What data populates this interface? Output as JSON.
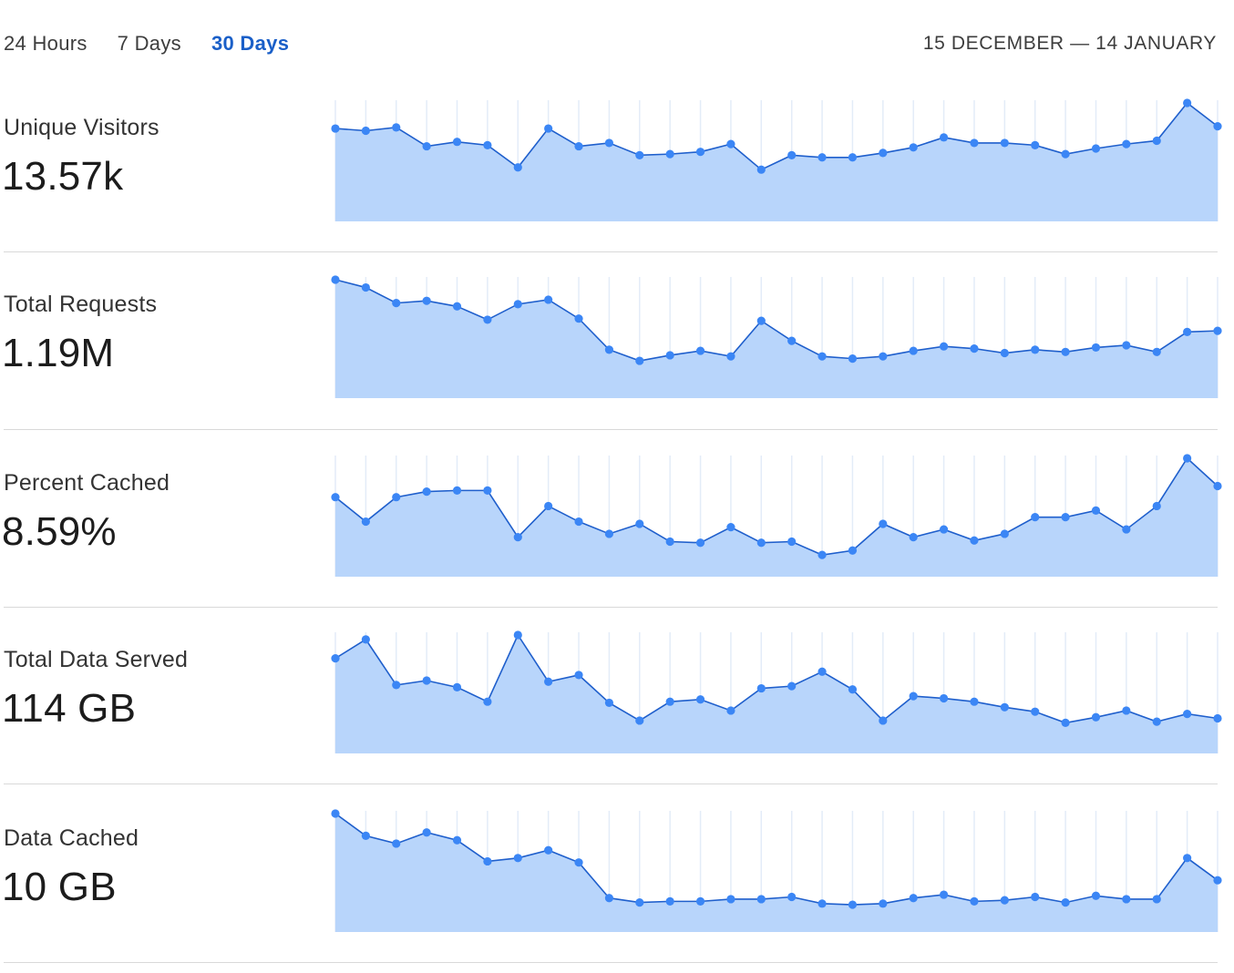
{
  "tabs": [
    {
      "label": "24 Hours",
      "active": false
    },
    {
      "label": "7 Days",
      "active": false
    },
    {
      "label": "30 Days",
      "active": true
    }
  ],
  "date_range": "15 DECEMBER — 14 JANUARY",
  "colors": {
    "accent": "#1a5fc8",
    "line": "#1f5fcc",
    "point": "#3b86f5",
    "area": "#b8d5fb",
    "gridline": "#e3ecf8",
    "divider": "#d9d9d9"
  },
  "metrics": [
    {
      "label": "Unique Visitors",
      "value": "13.57k"
    },
    {
      "label": "Total Requests",
      "value": "1.19M"
    },
    {
      "label": "Percent Cached",
      "value": "8.59%"
    },
    {
      "label": "Total Data Served",
      "value": "114 GB"
    },
    {
      "label": "Data Cached",
      "value": "10 GB"
    }
  ],
  "chart_data": [
    {
      "type": "area",
      "series": [
        {
          "values": [
            77,
            75,
            78,
            61,
            65,
            62,
            42,
            77,
            61,
            64,
            53,
            54,
            56,
            63,
            40,
            53,
            51,
            51,
            55,
            60,
            69,
            64,
            64,
            62,
            54,
            59,
            63,
            66,
            100,
            79
          ]
        }
      ]
    },
    {
      "type": "area",
      "series": [
        {
          "values": [
            100,
            93,
            79,
            81,
            76,
            64,
            78,
            82,
            65,
            37,
            27,
            32,
            36,
            31,
            63,
            45,
            31,
            29,
            31,
            36,
            40,
            38,
            34,
            37,
            35,
            39,
            41,
            35,
            53,
            54
          ]
        }
      ]
    },
    {
      "type": "area",
      "series": [
        {
          "values": [
            65,
            43,
            65,
            70,
            71,
            71,
            29,
            57,
            43,
            32,
            41,
            25,
            24,
            38,
            24,
            25,
            13,
            17,
            41,
            29,
            36,
            26,
            32,
            47,
            47,
            53,
            36,
            57,
            100,
            75
          ]
        }
      ]
    },
    {
      "type": "area",
      "series": [
        {
          "values": [
            79,
            96,
            55,
            59,
            53,
            40,
            100,
            58,
            64,
            39,
            23,
            40,
            42,
            32,
            52,
            54,
            67,
            51,
            23,
            45,
            43,
            40,
            35,
            31,
            21,
            26,
            32,
            22,
            29,
            25
          ]
        }
      ]
    },
    {
      "type": "area",
      "series": [
        {
          "values": [
            100,
            80,
            73,
            83,
            76,
            57,
            60,
            67,
            56,
            24,
            20,
            21,
            21,
            23,
            23,
            25,
            19,
            18,
            19,
            24,
            27,
            21,
            22,
            25,
            20,
            26,
            23,
            23,
            60,
            40
          ]
        }
      ]
    }
  ]
}
